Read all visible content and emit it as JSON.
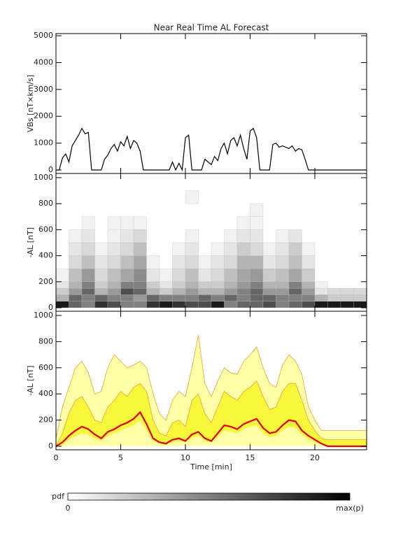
{
  "title": "Near Real Time AL Forecast",
  "chart_data": [
    {
      "type": "line",
      "ylabel": "VBs [nT×km/s]",
      "color": "#000000",
      "xlim": [
        0,
        24
      ],
      "xticks": [
        0,
        5,
        10,
        15,
        20
      ],
      "ylim": [
        -130,
        5080
      ],
      "yticks": [
        0,
        1000,
        2000,
        3000,
        4000,
        5000
      ],
      "x": [
        0,
        0.25,
        0.5,
        0.75,
        1,
        1.25,
        1.5,
        1.75,
        2,
        2.25,
        2.5,
        2.75,
        3,
        3.25,
        3.5,
        3.75,
        4,
        4.25,
        4.5,
        4.75,
        5,
        5.25,
        5.5,
        5.75,
        6,
        6.25,
        6.5,
        6.75,
        7,
        7.25,
        7.5,
        7.75,
        8,
        8.25,
        8.5,
        8.75,
        9,
        9.25,
        9.5,
        9.75,
        10,
        10.25,
        10.5,
        10.75,
        11,
        11.25,
        11.5,
        11.75,
        12,
        12.25,
        12.5,
        12.75,
        13,
        13.25,
        13.5,
        13.75,
        14,
        14.25,
        14.5,
        14.75,
        15,
        15.25,
        15.5,
        15.75,
        16,
        16.25,
        16.5,
        16.75,
        17,
        17.25,
        17.5,
        17.75,
        18,
        18.25,
        18.5,
        18.75,
        19,
        19.25,
        19.5,
        19.75,
        20,
        20.25,
        20.5,
        20.75,
        21,
        21.25,
        21.5,
        21.75,
        22,
        22.25,
        22.5,
        22.75,
        23,
        23.25,
        23.5,
        23.75,
        24
      ],
      "values": [
        0,
        0,
        450,
        600,
        300,
        900,
        1100,
        1300,
        1550,
        1350,
        1400,
        0,
        0,
        0,
        0,
        400,
        550,
        800,
        950,
        700,
        1050,
        900,
        1250,
        800,
        1100,
        1000,
        700,
        0,
        0,
        0,
        0,
        0,
        0,
        0,
        0,
        0,
        300,
        0,
        250,
        0,
        1200,
        1300,
        0,
        0,
        0,
        0,
        400,
        300,
        200,
        500,
        350,
        800,
        1000,
        600,
        1100,
        1200,
        900,
        1300,
        800,
        400,
        1450,
        1550,
        1200,
        0,
        0,
        0,
        0,
        950,
        1000,
        850,
        900,
        850,
        800,
        900,
        700,
        800,
        750,
        400,
        0,
        0,
        0,
        0,
        0,
        0,
        0,
        0,
        0,
        0,
        0,
        0,
        0,
        0,
        0,
        0,
        0,
        0,
        0
      ]
    },
    {
      "type": "heatmap",
      "ylabel": "-AL [nT]",
      "xlim": [
        0,
        24
      ],
      "xticks": [
        0,
        5,
        10,
        15,
        20
      ],
      "ylim": [
        -27,
        1032
      ],
      "yticks": [
        0,
        200,
        400,
        600,
        800,
        1000
      ],
      "x_bins": [
        0,
        1,
        2,
        3,
        4,
        5,
        6,
        7,
        8,
        9,
        10,
        11,
        12,
        13,
        14,
        15,
        16,
        17,
        18,
        19,
        20,
        21,
        22,
        23,
        24
      ],
      "y_bins": [
        0,
        50,
        100,
        150,
        200,
        300,
        400,
        500,
        600,
        700,
        800,
        900
      ],
      "z": [
        [
          0.9,
          0.6,
          0.5,
          0.8,
          0.7,
          0.5,
          0.5,
          0.8,
          0.9,
          0.8,
          0.7,
          0.7,
          0.9,
          0.5,
          0.6,
          0.6,
          0.7,
          0.5,
          0.6,
          0.7,
          0.9,
          0.9,
          0.9,
          0.9
        ],
        [
          0.3,
          0.6,
          0.5,
          0.6,
          0.5,
          0.5,
          0.4,
          0.6,
          0.5,
          0.5,
          0.5,
          0.6,
          0.5,
          0.6,
          0.5,
          0.6,
          0.6,
          0.5,
          0.5,
          0.5,
          0.3,
          0.2,
          0.2,
          0.2
        ],
        [
          0.2,
          0.4,
          0.6,
          0.3,
          0.4,
          0.7,
          0.6,
          0.3,
          0.2,
          0.3,
          0.4,
          0.3,
          0.3,
          0.4,
          0.5,
          0.6,
          0.4,
          0.4,
          0.6,
          0.4,
          0.1,
          0.15,
          0.15,
          0.15
        ],
        [
          0.1,
          0.3,
          0.5,
          0.2,
          0.3,
          0.5,
          0.5,
          0.2,
          0.1,
          0.2,
          0.3,
          0.2,
          0.2,
          0.3,
          0.4,
          0.5,
          0.3,
          0.3,
          0.5,
          0.3,
          0.05,
          0,
          0,
          0
        ],
        [
          0.05,
          0.25,
          0.4,
          0.15,
          0.25,
          0.35,
          0.45,
          0.1,
          0.05,
          0.15,
          0.25,
          0.1,
          0.15,
          0.25,
          0.35,
          0.4,
          0.2,
          0.25,
          0.35,
          0.2,
          0,
          0,
          0,
          0
        ],
        [
          0,
          0.15,
          0.25,
          0.1,
          0.15,
          0.25,
          0.35,
          0.05,
          0,
          0.1,
          0.15,
          0.05,
          0.1,
          0.15,
          0.3,
          0.3,
          0.1,
          0.15,
          0.25,
          0.1,
          0,
          0,
          0,
          0
        ],
        [
          0,
          0.1,
          0.15,
          0.05,
          0.1,
          0.15,
          0.25,
          0,
          0,
          0.05,
          0.1,
          0,
          0.05,
          0.1,
          0.2,
          0.15,
          0.05,
          0.1,
          0.2,
          0.05,
          0,
          0,
          0,
          0
        ],
        [
          0,
          0.05,
          0.1,
          0,
          0.05,
          0.1,
          0.15,
          0,
          0,
          0,
          0.05,
          0,
          0,
          0.05,
          0.1,
          0.1,
          0,
          0.05,
          0.1,
          0,
          0,
          0,
          0,
          0
        ],
        [
          0,
          0,
          0.05,
          0,
          0.05,
          0.05,
          0.05,
          0,
          0,
          0,
          0,
          0,
          0,
          0,
          0.05,
          0.05,
          0,
          0,
          0,
          0,
          0,
          0,
          0,
          0
        ],
        [
          0,
          0,
          0,
          0,
          0,
          0,
          0,
          0,
          0,
          0,
          0,
          0,
          0,
          0,
          0,
          0.05,
          0,
          0,
          0,
          0,
          0,
          0,
          0,
          0
        ],
        [
          0,
          0,
          0,
          0,
          0,
          0,
          0,
          0,
          0,
          0,
          0.05,
          0,
          0,
          0,
          0,
          0,
          0,
          0,
          0,
          0,
          0,
          0,
          0,
          0
        ]
      ]
    },
    {
      "type": "band",
      "ylabel": "-AL [nT]",
      "xlabel": "Time [min]",
      "xlim": [
        0,
        24
      ],
      "xticks": [
        0,
        5,
        10,
        15,
        20
      ],
      "ylim": [
        -27,
        1032
      ],
      "yticks": [
        0,
        200,
        400,
        600,
        800,
        1000
      ],
      "x": [
        0,
        0.5,
        1,
        1.5,
        2,
        2.5,
        3,
        3.5,
        4,
        4.5,
        5,
        5.5,
        6,
        6.5,
        7,
        7.5,
        8,
        8.5,
        9,
        9.5,
        10,
        10.5,
        11,
        11.5,
        12,
        12.5,
        13,
        13.5,
        14,
        14.5,
        15,
        15.5,
        16,
        16.5,
        17,
        17.5,
        18,
        18.5,
        19,
        19.5,
        20,
        20.5,
        21,
        21.5,
        22,
        22.5,
        23,
        23.5,
        24
      ],
      "bands": [
        {
          "color": "#ffffa8",
          "edge": "#f0a030",
          "lower": [
            0,
            0,
            0,
            0,
            0,
            0,
            0,
            0,
            0,
            0,
            0,
            0,
            0,
            0,
            0,
            0,
            0,
            0,
            0,
            0,
            0,
            0,
            0,
            0,
            0,
            0,
            0,
            0,
            0,
            0,
            0,
            0,
            0,
            0,
            0,
            0,
            0,
            0,
            0,
            0,
            0,
            0,
            0,
            0,
            0,
            0,
            0,
            0,
            0
          ],
          "upper": [
            60,
            300,
            450,
            600,
            650,
            560,
            400,
            420,
            600,
            700,
            650,
            600,
            620,
            650,
            600,
            400,
            250,
            200,
            350,
            420,
            380,
            600,
            850,
            480,
            380,
            500,
            600,
            560,
            550,
            650,
            700,
            760,
            600,
            480,
            450,
            620,
            700,
            650,
            550,
            300,
            200,
            120,
            120,
            120,
            120,
            120,
            120,
            120,
            120
          ]
        },
        {
          "color": "#f6f63a",
          "edge": "#f0a030",
          "lower": [
            0,
            10,
            50,
            80,
            100,
            90,
            60,
            40,
            80,
            100,
            120,
            140,
            160,
            200,
            120,
            40,
            20,
            10,
            30,
            40,
            30,
            60,
            80,
            40,
            30,
            70,
            120,
            110,
            100,
            130,
            150,
            160,
            100,
            70,
            80,
            120,
            150,
            140,
            90,
            50,
            30,
            10,
            0,
            0,
            0,
            0,
            0,
            0,
            0
          ],
          "upper": [
            0,
            100,
            250,
            350,
            380,
            300,
            200,
            180,
            300,
            350,
            420,
            380,
            450,
            480,
            420,
            200,
            100,
            80,
            180,
            200,
            150,
            350,
            400,
            250,
            180,
            300,
            420,
            380,
            350,
            420,
            450,
            500,
            380,
            280,
            300,
            420,
            480,
            480,
            350,
            200,
            120,
            60,
            50,
            50,
            50,
            50,
            50,
            50,
            50
          ]
        }
      ],
      "line": {
        "color": "#e00000",
        "values": [
          0,
          30,
          80,
          120,
          150,
          130,
          90,
          60,
          110,
          130,
          160,
          180,
          210,
          260,
          170,
          60,
          30,
          20,
          50,
          60,
          40,
          90,
          110,
          60,
          40,
          100,
          160,
          150,
          130,
          170,
          190,
          210,
          140,
          100,
          110,
          160,
          200,
          190,
          120,
          80,
          50,
          20,
          0,
          0,
          0,
          0,
          0,
          0,
          0
        ]
      }
    }
  ],
  "colorbar": {
    "label": "pdf",
    "min_label": 0,
    "max_label": "max(p)"
  }
}
